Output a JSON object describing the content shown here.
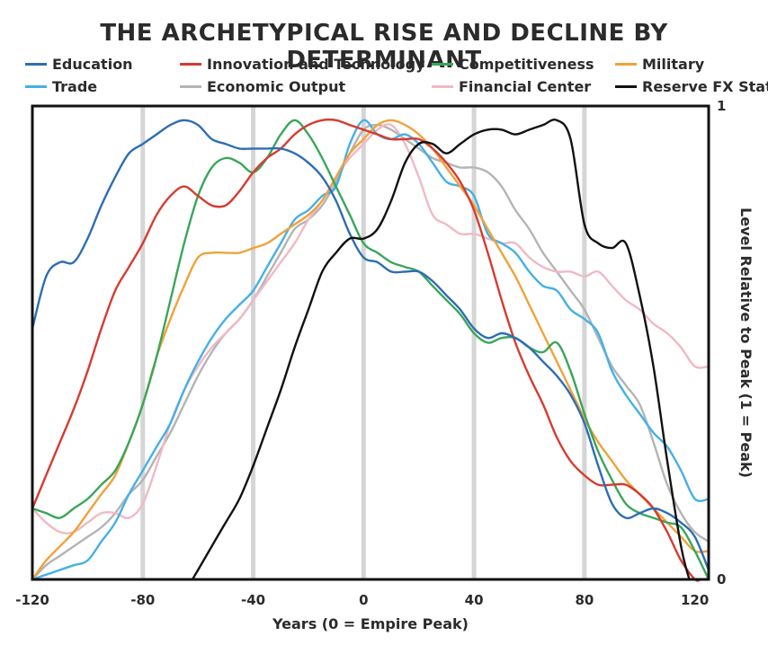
{
  "chart_data": {
    "type": "line",
    "title": "THE ARCHETYPICAL RISE AND DECLINE BY DETERMINANT",
    "xlabel": "Years (0 = Empire Peak)",
    "ylabel": "Level Relative to Peak (1 = Peak)",
    "xlim": [
      -120,
      125
    ],
    "ylim": [
      0,
      1
    ],
    "x_ticks": [
      "-120",
      "-80",
      "-40",
      "0",
      "40",
      "80",
      "120"
    ],
    "y_ticks": [
      "0",
      "1"
    ],
    "vertical_gridlines_at": [
      -80,
      -40,
      0,
      40,
      80
    ],
    "legend_position": "top",
    "series": [
      {
        "name": "Education",
        "color": "#2e6db4",
        "x": [
          -120,
          -115,
          -110,
          -105,
          -100,
          -95,
          -90,
          -85,
          -80,
          -75,
          -70,
          -65,
          -60,
          -55,
          -50,
          -45,
          -40,
          -35,
          -30,
          -25,
          -20,
          -15,
          -10,
          -5,
          0,
          5,
          10,
          15,
          20,
          25,
          30,
          35,
          40,
          45,
          50,
          55,
          60,
          65,
          70,
          75,
          80,
          85,
          90,
          95,
          100,
          105,
          110,
          115,
          120,
          125
        ],
        "y": [
          0.53,
          0.64,
          0.67,
          0.67,
          0.72,
          0.79,
          0.85,
          0.9,
          0.92,
          0.94,
          0.96,
          0.97,
          0.96,
          0.93,
          0.92,
          0.91,
          0.91,
          0.91,
          0.91,
          0.9,
          0.88,
          0.85,
          0.8,
          0.73,
          0.68,
          0.67,
          0.65,
          0.65,
          0.65,
          0.63,
          0.6,
          0.57,
          0.53,
          0.51,
          0.52,
          0.51,
          0.49,
          0.46,
          0.43,
          0.39,
          0.33,
          0.24,
          0.16,
          0.13,
          0.14,
          0.15,
          0.14,
          0.12,
          0.09,
          0.02
        ]
      },
      {
        "name": "Innovation and Technology",
        "color": "#d63b30",
        "x": [
          -120,
          -115,
          -110,
          -105,
          -100,
          -95,
          -90,
          -85,
          -80,
          -75,
          -70,
          -65,
          -60,
          -55,
          -50,
          -45,
          -40,
          -35,
          -30,
          -25,
          -20,
          -15,
          -10,
          -5,
          0,
          5,
          10,
          15,
          20,
          25,
          30,
          35,
          40,
          45,
          50,
          55,
          60,
          65,
          70,
          75,
          80,
          85,
          90,
          95,
          100,
          105,
          110,
          115,
          120,
          122
        ],
        "y": [
          0.15,
          0.22,
          0.29,
          0.36,
          0.44,
          0.53,
          0.61,
          0.66,
          0.71,
          0.77,
          0.81,
          0.83,
          0.81,
          0.79,
          0.79,
          0.82,
          0.86,
          0.89,
          0.91,
          0.94,
          0.96,
          0.97,
          0.97,
          0.96,
          0.95,
          0.94,
          0.93,
          0.93,
          0.93,
          0.91,
          0.88,
          0.84,
          0.78,
          0.69,
          0.59,
          0.5,
          0.43,
          0.37,
          0.3,
          0.25,
          0.22,
          0.2,
          0.2,
          0.2,
          0.18,
          0.15,
          0.1,
          0.04,
          0.0,
          0.0
        ]
      },
      {
        "name": "Competitiveness",
        "color": "#3aa65a",
        "x": [
          -120,
          -115,
          -110,
          -105,
          -100,
          -95,
          -90,
          -85,
          -80,
          -75,
          -70,
          -65,
          -60,
          -55,
          -50,
          -45,
          -40,
          -35,
          -30,
          -25,
          -20,
          -15,
          -10,
          -5,
          0,
          5,
          10,
          15,
          20,
          25,
          30,
          35,
          40,
          45,
          50,
          55,
          60,
          65,
          70,
          75,
          80,
          85,
          90,
          95,
          100,
          105,
          110,
          115,
          120,
          125
        ],
        "y": [
          0.15,
          0.14,
          0.13,
          0.15,
          0.17,
          0.2,
          0.23,
          0.29,
          0.37,
          0.47,
          0.59,
          0.71,
          0.81,
          0.87,
          0.89,
          0.88,
          0.86,
          0.89,
          0.94,
          0.97,
          0.94,
          0.89,
          0.83,
          0.77,
          0.71,
          0.69,
          0.67,
          0.66,
          0.65,
          0.62,
          0.59,
          0.56,
          0.52,
          0.5,
          0.51,
          0.51,
          0.49,
          0.48,
          0.5,
          0.44,
          0.35,
          0.27,
          0.21,
          0.16,
          0.14,
          0.13,
          0.12,
          0.11,
          0.06,
          0.0
        ]
      },
      {
        "name": "Military",
        "color": "#f0a23a",
        "x": [
          -120,
          -115,
          -110,
          -105,
          -100,
          -95,
          -90,
          -85,
          -80,
          -75,
          -70,
          -65,
          -60,
          -55,
          -50,
          -45,
          -40,
          -35,
          -30,
          -25,
          -20,
          -15,
          -10,
          -5,
          0,
          5,
          10,
          15,
          20,
          25,
          30,
          35,
          40,
          45,
          50,
          55,
          60,
          65,
          70,
          75,
          80,
          85,
          90,
          95,
          100,
          105,
          110,
          115,
          120,
          125
        ],
        "y": [
          0.0,
          0.04,
          0.07,
          0.1,
          0.14,
          0.18,
          0.22,
          0.29,
          0.37,
          0.47,
          0.55,
          0.62,
          0.68,
          0.69,
          0.69,
          0.69,
          0.7,
          0.71,
          0.73,
          0.75,
          0.77,
          0.8,
          0.85,
          0.9,
          0.93,
          0.96,
          0.97,
          0.96,
          0.94,
          0.91,
          0.87,
          0.83,
          0.79,
          0.74,
          0.69,
          0.64,
          0.58,
          0.52,
          0.46,
          0.4,
          0.34,
          0.29,
          0.25,
          0.21,
          0.18,
          0.15,
          0.12,
          0.09,
          0.06,
          0.06
        ]
      },
      {
        "name": "Trade",
        "color": "#45b0e6",
        "x": [
          -120,
          -115,
          -110,
          -105,
          -100,
          -95,
          -90,
          -85,
          -80,
          -75,
          -70,
          -65,
          -60,
          -55,
          -50,
          -45,
          -40,
          -35,
          -30,
          -25,
          -20,
          -15,
          -10,
          -5,
          0,
          5,
          10,
          15,
          20,
          25,
          30,
          35,
          40,
          45,
          50,
          55,
          60,
          65,
          70,
          75,
          80,
          85,
          90,
          95,
          100,
          105,
          110,
          115,
          120,
          125
        ],
        "y": [
          0.0,
          0.01,
          0.02,
          0.03,
          0.04,
          0.08,
          0.12,
          0.18,
          0.23,
          0.28,
          0.33,
          0.4,
          0.46,
          0.51,
          0.55,
          0.58,
          0.61,
          0.66,
          0.71,
          0.76,
          0.78,
          0.81,
          0.83,
          0.92,
          0.97,
          0.94,
          0.93,
          0.94,
          0.92,
          0.88,
          0.84,
          0.83,
          0.81,
          0.73,
          0.71,
          0.69,
          0.65,
          0.62,
          0.61,
          0.57,
          0.55,
          0.52,
          0.44,
          0.39,
          0.35,
          0.31,
          0.28,
          0.23,
          0.17,
          0.17
        ]
      },
      {
        "name": "Economic Output",
        "color": "#b4b4b4",
        "x": [
          -120,
          -115,
          -110,
          -105,
          -100,
          -95,
          -90,
          -85,
          -80,
          -75,
          -70,
          -65,
          -60,
          -55,
          -50,
          -45,
          -40,
          -35,
          -30,
          -25,
          -20,
          -15,
          -10,
          -5,
          0,
          5,
          10,
          15,
          20,
          25,
          30,
          35,
          40,
          45,
          50,
          55,
          60,
          65,
          70,
          75,
          80,
          85,
          90,
          95,
          100,
          105,
          110,
          115,
          120,
          125
        ],
        "y": [
          0.0,
          0.03,
          0.05,
          0.07,
          0.09,
          0.11,
          0.14,
          0.18,
          0.21,
          0.26,
          0.31,
          0.37,
          0.43,
          0.48,
          0.52,
          0.55,
          0.59,
          0.64,
          0.69,
          0.74,
          0.76,
          0.79,
          0.84,
          0.9,
          0.95,
          0.96,
          0.95,
          0.93,
          0.91,
          0.89,
          0.88,
          0.87,
          0.87,
          0.86,
          0.83,
          0.78,
          0.74,
          0.69,
          0.65,
          0.61,
          0.57,
          0.51,
          0.45,
          0.41,
          0.37,
          0.29,
          0.2,
          0.14,
          0.1,
          0.08
        ]
      },
      {
        "name": "Financial Center",
        "color": "#f0b9c4",
        "x": [
          -120,
          -115,
          -110,
          -105,
          -100,
          -95,
          -90,
          -85,
          -80,
          -75,
          -70,
          -65,
          -60,
          -55,
          -50,
          -45,
          -40,
          -35,
          -30,
          -25,
          -20,
          -15,
          -10,
          -5,
          0,
          5,
          10,
          15,
          20,
          25,
          30,
          35,
          40,
          45,
          50,
          55,
          60,
          65,
          70,
          75,
          80,
          85,
          90,
          95,
          100,
          105,
          110,
          115,
          120,
          125
        ],
        "y": [
          0.15,
          0.12,
          0.1,
          0.1,
          0.12,
          0.14,
          0.14,
          0.13,
          0.16,
          0.24,
          0.33,
          0.4,
          0.45,
          0.49,
          0.52,
          0.55,
          0.59,
          0.63,
          0.67,
          0.71,
          0.76,
          0.8,
          0.85,
          0.89,
          0.92,
          0.95,
          0.96,
          0.92,
          0.85,
          0.77,
          0.75,
          0.73,
          0.73,
          0.72,
          0.71,
          0.71,
          0.68,
          0.66,
          0.65,
          0.65,
          0.64,
          0.65,
          0.62,
          0.59,
          0.57,
          0.54,
          0.52,
          0.49,
          0.45,
          0.45
        ]
      },
      {
        "name": "Reserve FX Status",
        "color": "#111111",
        "x": [
          -62,
          -60,
          -55,
          -50,
          -45,
          -40,
          -35,
          -30,
          -25,
          -20,
          -15,
          -10,
          -5,
          0,
          5,
          10,
          15,
          20,
          25,
          30,
          35,
          40,
          45,
          50,
          55,
          60,
          65,
          70,
          75,
          80,
          85,
          90,
          95,
          100,
          105,
          110,
          115,
          118
        ],
        "y": [
          0.0,
          0.02,
          0.07,
          0.12,
          0.17,
          0.24,
          0.32,
          0.4,
          0.49,
          0.57,
          0.65,
          0.69,
          0.72,
          0.72,
          0.74,
          0.8,
          0.88,
          0.92,
          0.92,
          0.9,
          0.92,
          0.94,
          0.95,
          0.95,
          0.94,
          0.95,
          0.96,
          0.97,
          0.93,
          0.75,
          0.71,
          0.7,
          0.71,
          0.6,
          0.45,
          0.25,
          0.07,
          0.0
        ]
      }
    ]
  }
}
